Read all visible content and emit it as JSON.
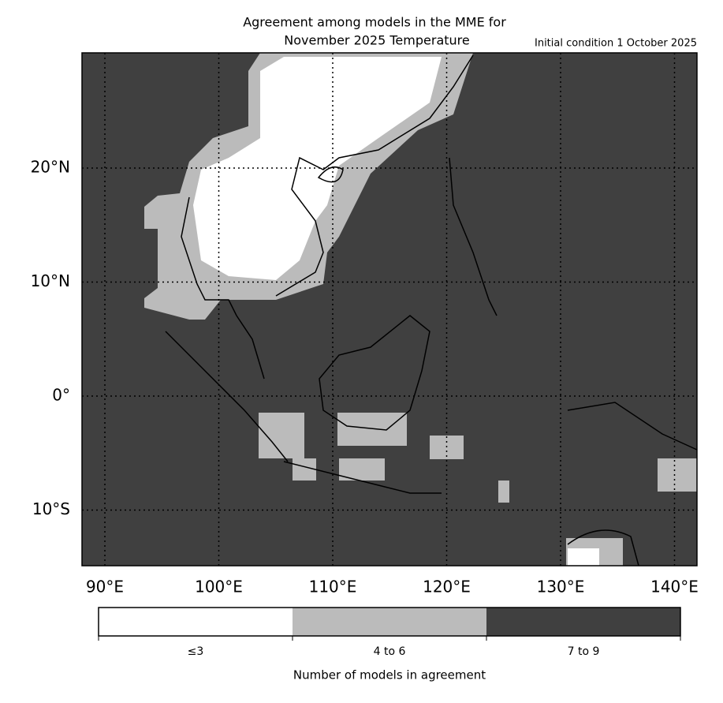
{
  "title": [
    "Agreement among models in the MME for",
    "November 2025  Temperature"
  ],
  "subtitle": "Initial condition 1 October 2025",
  "map": {
    "lon_labels": [
      "90°E",
      "100°E",
      "110°E",
      "120°E",
      "130°E",
      "140°E"
    ],
    "lat_labels": [
      "20°N",
      "10°N",
      "0°",
      "10°S"
    ]
  },
  "legend": {
    "items": [
      "≤3",
      "4 to 6",
      "7 to 9"
    ],
    "colors": [
      "#ffffff",
      "#bbbbbb",
      "#404040"
    ],
    "label": "Number of models in agreement"
  }
}
